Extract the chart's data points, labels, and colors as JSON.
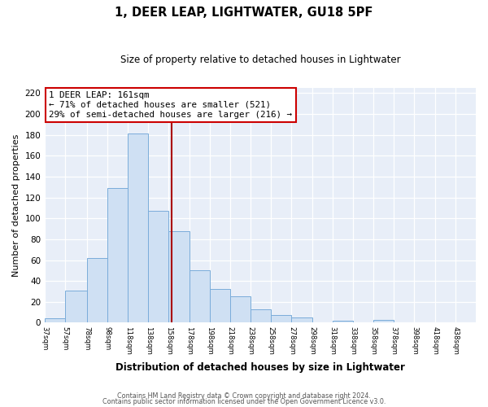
{
  "title": "1, DEER LEAP, LIGHTWATER, GU18 5PF",
  "subtitle": "Size of property relative to detached houses in Lightwater",
  "xlabel": "Distribution of detached houses by size in Lightwater",
  "ylabel": "Number of detached properties",
  "bar_color": "#cfe0f3",
  "bar_edge_color": "#7aacda",
  "background_color": "#e8eef8",
  "grid_color": "#ffffff",
  "vline_value": 161,
  "vline_color": "#aa0000",
  "annotation_line1": "1 DEER LEAP: 161sqm",
  "annotation_line2": "← 71% of detached houses are smaller (521)",
  "annotation_line3": "29% of semi-detached houses are larger (216) →",
  "annotation_box_color": "#ffffff",
  "annotation_box_edge_color": "#cc0000",
  "bin_edges": [
    37,
    57,
    78,
    98,
    118,
    138,
    158,
    178,
    198,
    218,
    238,
    258,
    278,
    298,
    318,
    338,
    358,
    378,
    398,
    418,
    438,
    458
  ],
  "bar_heights": [
    4,
    31,
    62,
    129,
    181,
    107,
    88,
    50,
    32,
    25,
    13,
    7,
    5,
    0,
    2,
    0,
    3,
    0,
    0,
    0,
    0
  ],
  "ylim": [
    0,
    225
  ],
  "yticks": [
    0,
    20,
    40,
    60,
    80,
    100,
    120,
    140,
    160,
    180,
    200,
    220
  ],
  "footnote1": "Contains HM Land Registry data © Crown copyright and database right 2024.",
  "footnote2": "Contains public sector information licensed under the Open Government Licence v3.0."
}
